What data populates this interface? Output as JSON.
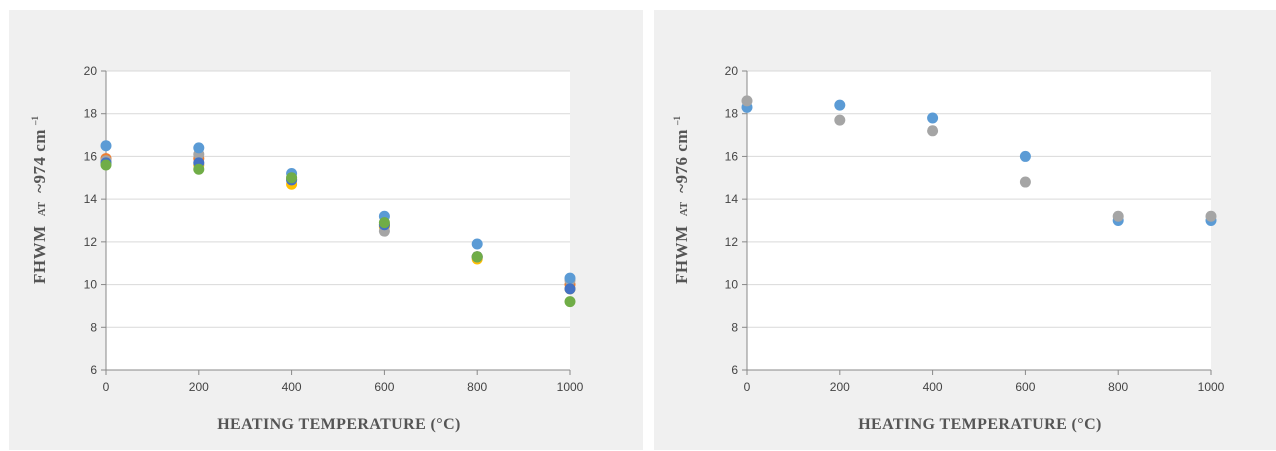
{
  "colors": {
    "blue": "#5b9bd5",
    "gray": "#a5a5a5",
    "orange": "#ed7d31",
    "yellow": "#ffc000",
    "darkblue": "#4472c4",
    "green": "#70ad47",
    "grid": "#d9d9d9",
    "axis": "#888888"
  },
  "chart_data": [
    {
      "type": "scatter",
      "title": "",
      "xlabel": "HEATING TEMPERATURE (°C)",
      "ylabel": {
        "pre": "FHWM",
        "at": "AT",
        "post": "~974 cm",
        "sup": "–1"
      },
      "xlim": [
        0,
        1000
      ],
      "ylim": [
        6,
        20
      ],
      "xticks": [
        0,
        200,
        400,
        600,
        800,
        1000
      ],
      "yticks": [
        6,
        8,
        10,
        12,
        14,
        16,
        18,
        20
      ],
      "grid": true,
      "legend": "none",
      "series": [
        {
          "color": "yellow",
          "x": [
            0,
            200,
            400,
            600,
            800,
            1000
          ],
          "y": [
            15.8,
            15.6,
            14.7,
            12.7,
            11.2,
            9.8
          ]
        },
        {
          "color": "orange",
          "x": [
            0,
            200,
            400,
            600,
            800,
            1000
          ],
          "y": [
            15.9,
            15.9,
            14.9,
            12.8,
            11.3,
            10.0
          ]
        },
        {
          "color": "gray",
          "x": [
            0,
            200,
            400,
            600,
            800,
            1000
          ],
          "y": [
            15.8,
            16.1,
            15.0,
            12.5,
            11.3,
            10.2
          ]
        },
        {
          "color": "blue",
          "x": [
            0,
            200,
            400,
            600,
            800,
            1000
          ],
          "y": [
            16.5,
            16.4,
            15.2,
            13.2,
            11.9,
            10.3
          ]
        },
        {
          "color": "darkblue",
          "x": [
            0,
            200,
            400,
            600,
            800,
            1000
          ],
          "y": [
            15.7,
            15.7,
            14.9,
            12.8,
            11.3,
            9.8
          ]
        },
        {
          "color": "green",
          "x": [
            0,
            200,
            400,
            600,
            800,
            1000
          ],
          "y": [
            15.6,
            15.4,
            15.0,
            12.9,
            11.3,
            9.2
          ]
        }
      ]
    },
    {
      "type": "scatter",
      "title": "",
      "xlabel": "HEATING TEMPERATURE (°C)",
      "ylabel": {
        "pre": "FHWM",
        "at": "AT",
        "post": "~976 cm",
        "sup": "–1"
      },
      "xlim": [
        0,
        1000
      ],
      "ylim": [
        6,
        20
      ],
      "xticks": [
        0,
        200,
        400,
        600,
        800,
        1000
      ],
      "yticks": [
        6,
        8,
        10,
        12,
        14,
        16,
        18,
        20
      ],
      "grid": true,
      "legend": "none",
      "series": [
        {
          "color": "blue",
          "x": [
            0,
            200,
            400,
            600,
            800,
            1000
          ],
          "y": [
            18.3,
            18.4,
            17.8,
            16.0,
            13.0,
            13.0
          ]
        },
        {
          "color": "gray",
          "x": [
            0,
            200,
            400,
            600,
            800,
            1000
          ],
          "y": [
            18.6,
            17.7,
            17.2,
            14.8,
            13.2,
            13.2
          ]
        }
      ]
    }
  ]
}
